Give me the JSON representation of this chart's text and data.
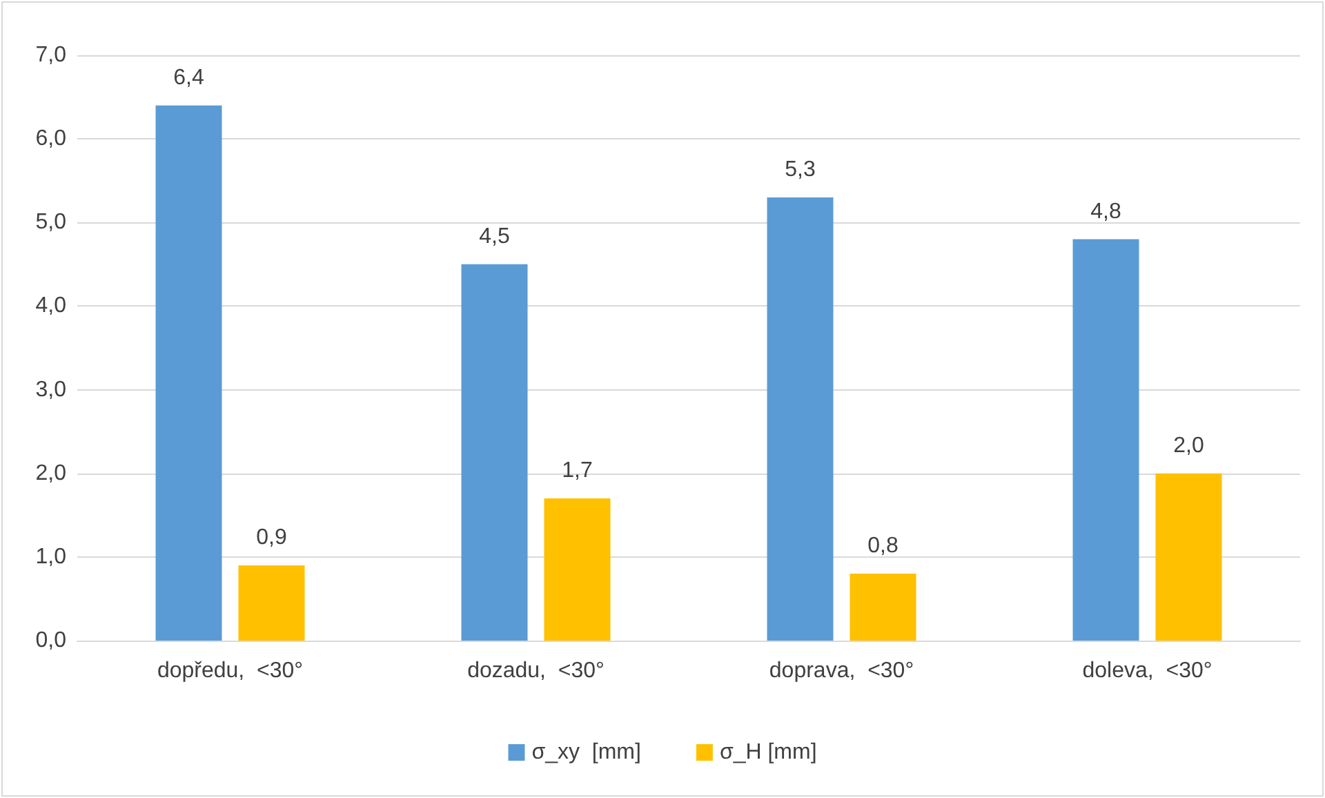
{
  "chart_data": {
    "type": "bar",
    "categories": [
      "dopředu,  <30°",
      "dozadu,  <30°",
      "doprava,  <30°",
      "doleva,  <30°"
    ],
    "series": [
      {
        "name": "σ_xy  [mm]",
        "color": "#5b9bd5",
        "values": [
          6.4,
          4.5,
          5.3,
          4.8
        ],
        "value_labels": [
          "6,4",
          "4,5",
          "5,3",
          "4,8"
        ]
      },
      {
        "name": "σ_H [mm]",
        "color": "#ffc000",
        "values": [
          0.9,
          1.7,
          0.8,
          2.0
        ],
        "value_labels": [
          "0,9",
          "1,7",
          "0,8",
          "2,0"
        ]
      }
    ],
    "ylim": [
      0,
      7
    ],
    "yticks": [
      {
        "value": 0,
        "label": "0,0"
      },
      {
        "value": 1,
        "label": "1,0"
      },
      {
        "value": 2,
        "label": "2,0"
      },
      {
        "value": 3,
        "label": "3,0"
      },
      {
        "value": 4,
        "label": "4,0"
      },
      {
        "value": 5,
        "label": "5,0"
      },
      {
        "value": 6,
        "label": "6,0"
      },
      {
        "value": 7,
        "label": "7,0"
      }
    ],
    "grid": "y",
    "legend": "bottom"
  }
}
